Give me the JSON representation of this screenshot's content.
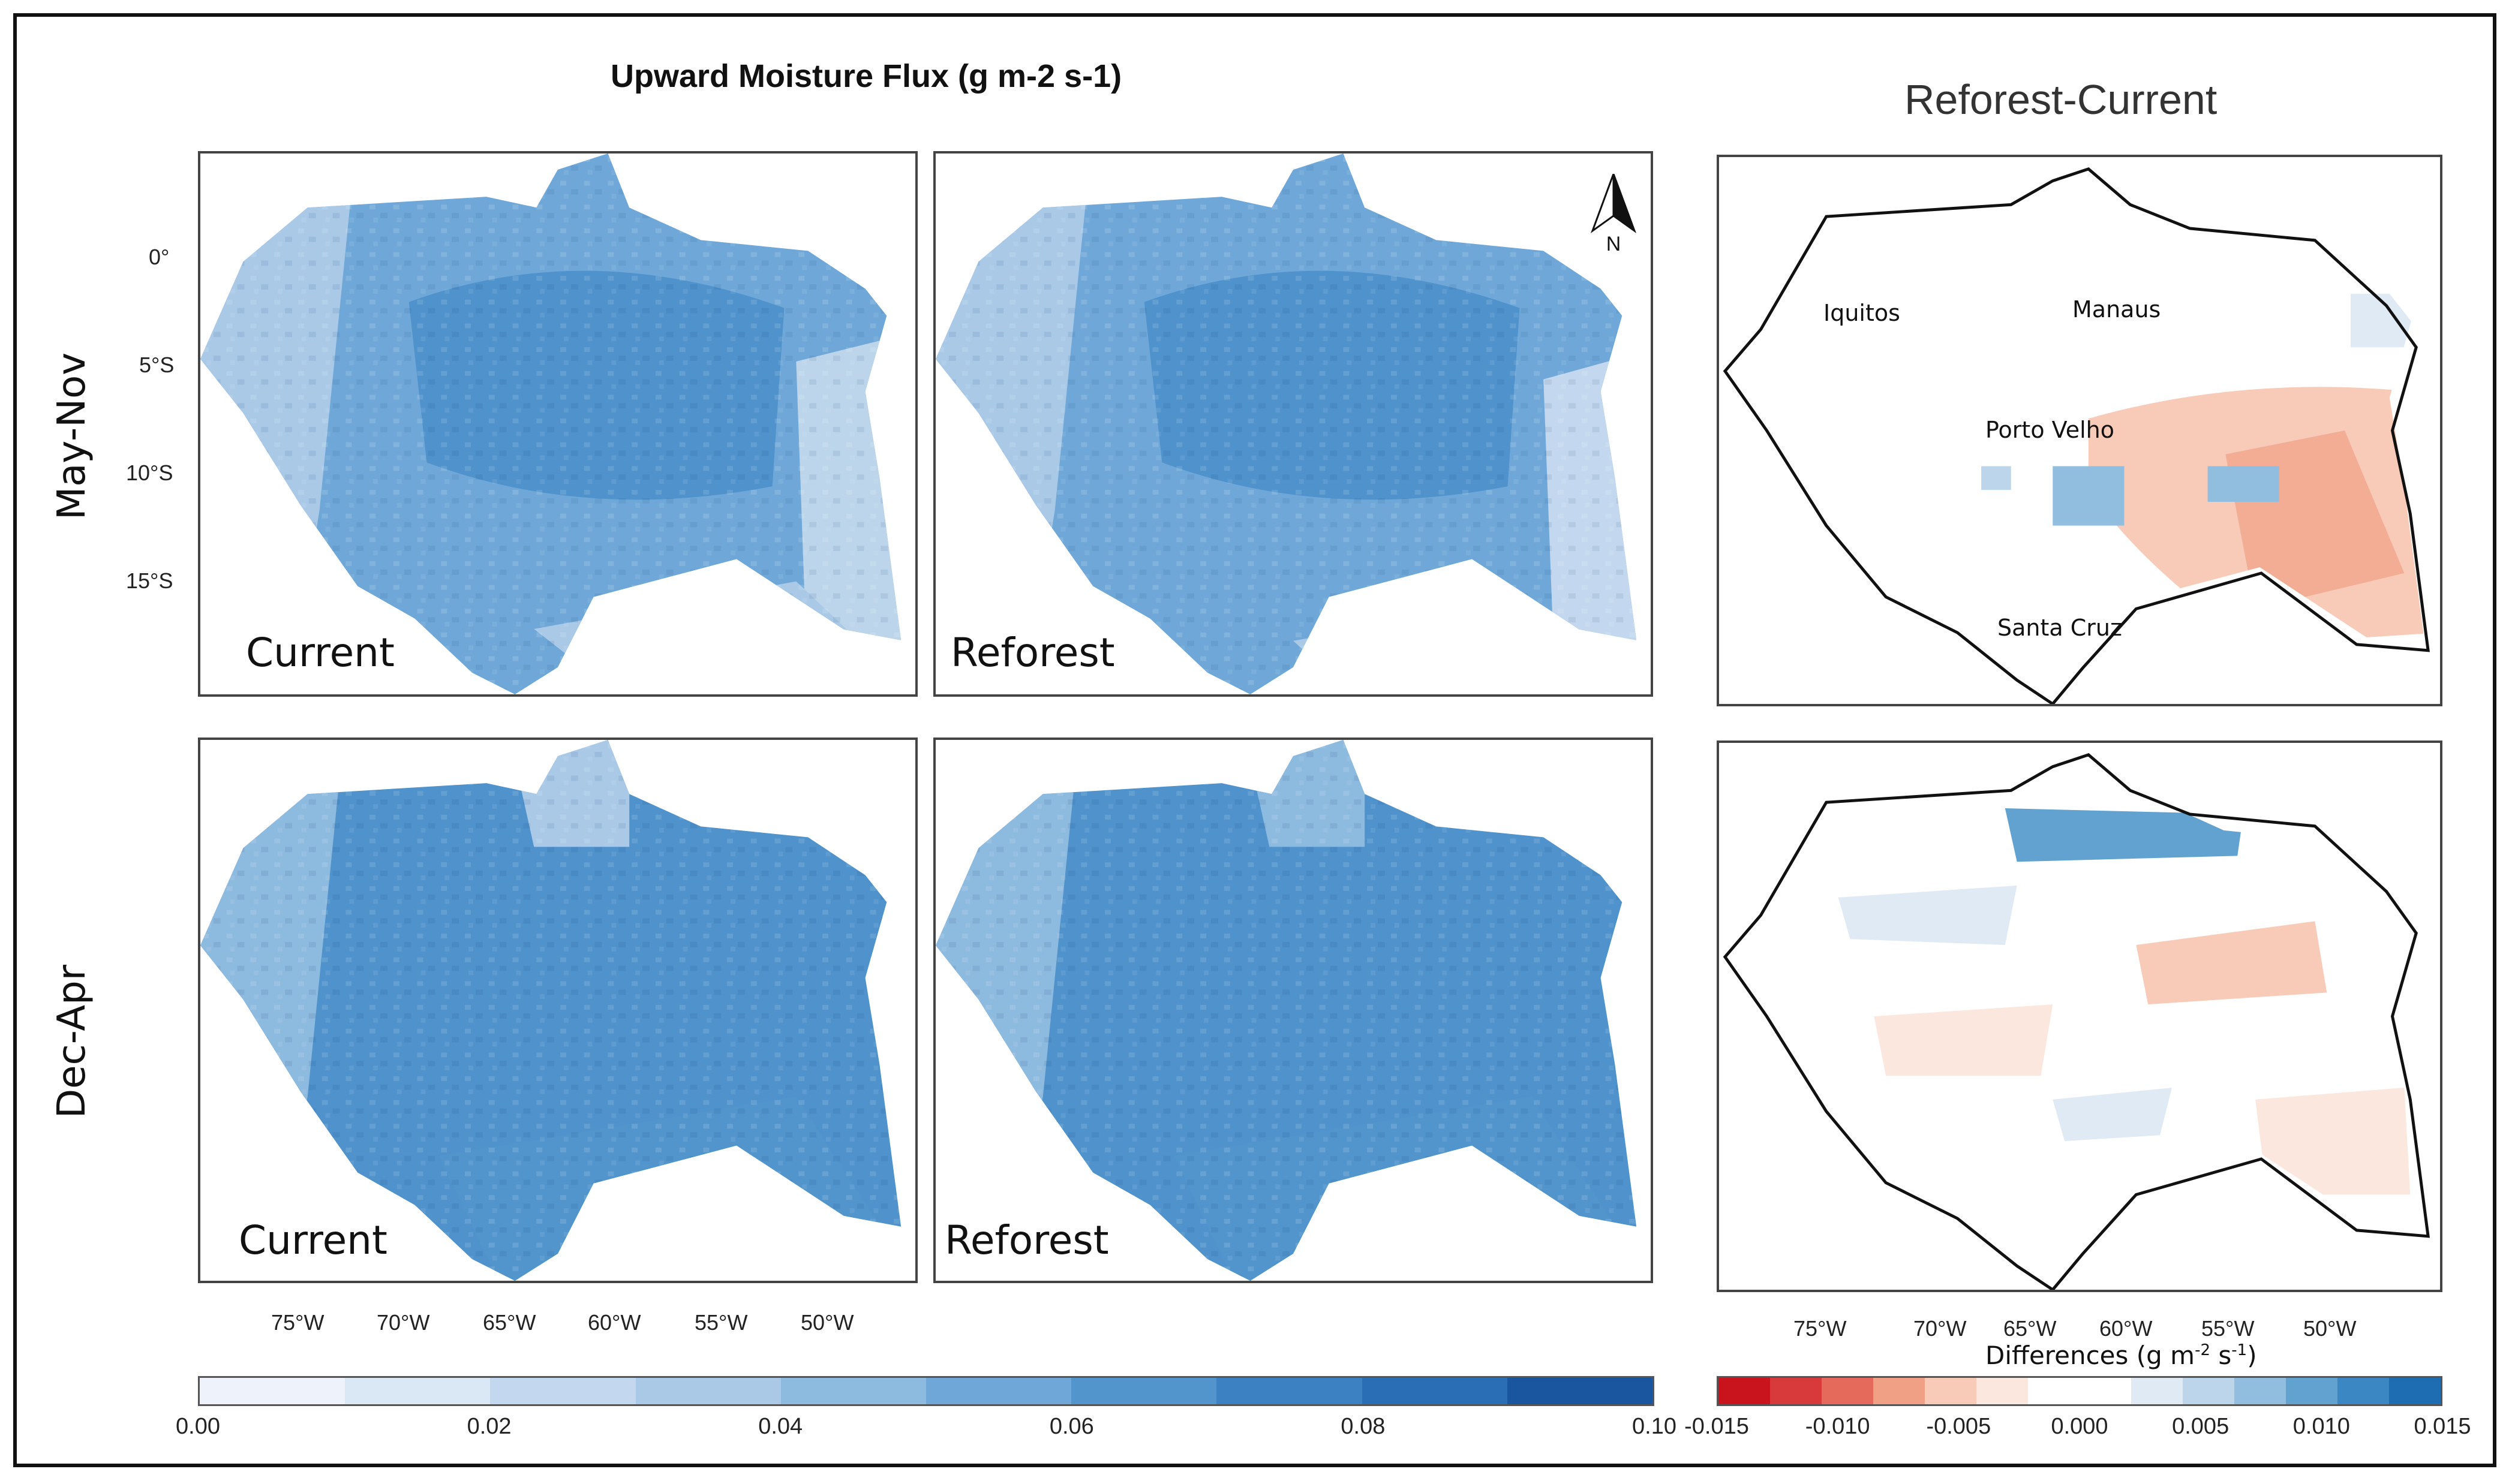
{
  "titles": {
    "left": "Upward Moisture Flux (g m-2 s-1)",
    "right": "Reforest-Current"
  },
  "rows": [
    "May-Nov",
    "Dec-Apr"
  ],
  "panels": {
    "current": "Current",
    "reforest": "Reforest"
  },
  "lat_ticks": [
    "0°",
    "5°S",
    "10°S",
    "15°S"
  ],
  "lon_ticks": [
    "75°W",
    "70°W",
    "65°W",
    "60°W",
    "55°W",
    "50°W"
  ],
  "cities": [
    "Iquitos",
    "Manaus",
    "Porto Velho",
    "Santa Cruz"
  ],
  "north_label": "N",
  "colorbar_flux": {
    "ticks": [
      "0.00",
      "0.02",
      "0.04",
      "0.06",
      "0.08",
      "0.10"
    ],
    "colors": [
      "#eef3fb",
      "#dae7f5",
      "#c3d8ee",
      "#a9c9e7",
      "#8dbadf",
      "#6fa8d8",
      "#5295cd",
      "#3c82c2",
      "#2a6fb5",
      "#1a569f"
    ]
  },
  "colorbar_diff": {
    "title": "Differences (g m",
    "title_sup1": "-2",
    "title_mid": " s",
    "title_sup2": "-1",
    "title_end": ")",
    "ticks": [
      "-0.015",
      "-0.010",
      "-0.005",
      "0.000",
      "0.005",
      "0.010",
      "0.015"
    ],
    "colors": [
      "#c9141e",
      "#d8393a",
      "#e66a5c",
      "#f0a085",
      "#f7cbb8",
      "#fbe7dd",
      "#ffffff",
      "#ffffff",
      "#dfeaf4",
      "#bcd5ea",
      "#91bedf",
      "#62a2d1",
      "#3a87c3",
      "#1e6db2"
    ]
  }
}
